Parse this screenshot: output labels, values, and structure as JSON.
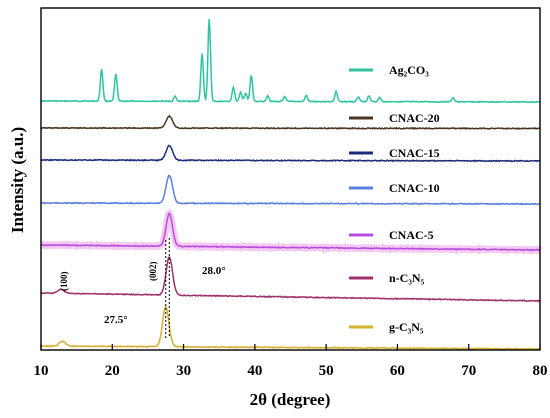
{
  "chart_data": {
    "type": "line",
    "xlabel": "2θ (degree)",
    "ylabel": "Intensity (a.u.)",
    "xlim": [
      10,
      80
    ],
    "x_ticks": [
      "10",
      "20",
      "30",
      "40",
      "50",
      "60",
      "70",
      "80"
    ],
    "y_ticks_labeled": false,
    "grid": false,
    "legend_placement": "right, next to each curve",
    "series": [
      {
        "name": "Ag₂CO₃",
        "color": "#2ec4a0",
        "peaks": [
          [
            18.5,
            32
          ],
          [
            20.5,
            27
          ],
          [
            28.8,
            5
          ],
          [
            32.6,
            48
          ],
          [
            33.6,
            82
          ],
          [
            37.0,
            14
          ],
          [
            38.0,
            9
          ],
          [
            38.7,
            8
          ],
          [
            39.5,
            26
          ],
          [
            41.8,
            6
          ],
          [
            44.2,
            5
          ],
          [
            47.2,
            6
          ],
          [
            51.4,
            10
          ],
          [
            54.5,
            5
          ],
          [
            56.0,
            6
          ],
          [
            57.5,
            4
          ],
          [
            67.8,
            4
          ]
        ]
      },
      {
        "name": "CNAC-20",
        "color": "#4a3420",
        "peaks": [
          [
            28.0,
            12
          ]
        ]
      },
      {
        "name": "CNAC-15",
        "color": "#1f2b7a",
        "peaks": [
          [
            28.0,
            15
          ]
        ]
      },
      {
        "name": "CNAC-10",
        "color": "#5b7fe0",
        "peaks": [
          [
            28.0,
            28
          ]
        ]
      },
      {
        "name": "CNAC-5",
        "color": "#b74be0",
        "peaks": [
          [
            28.0,
            33
          ]
        ]
      },
      {
        "name": "n-C₃N₅",
        "color": "#a0306a",
        "peaks": [
          [
            12.8,
            4
          ],
          [
            28.0,
            38
          ]
        ]
      },
      {
        "name": "g-C₃N₅",
        "color": "#d4b030",
        "peaks": [
          [
            13.0,
            5
          ],
          [
            27.5,
            40
          ]
        ]
      }
    ],
    "annotations": {
      "peak_100": "(100)",
      "peak_002": "(002)",
      "angle_a": "28.0°",
      "angle_b": "27.5°"
    }
  }
}
